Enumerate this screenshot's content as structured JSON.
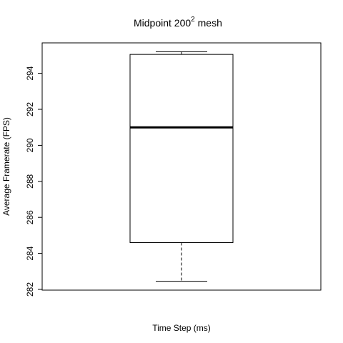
{
  "chart_data": {
    "type": "boxplot",
    "title": "Midpoint  200",
    "title_superscript": "2",
    "title_suffix": "  mesh",
    "xlabel": "Time Step (ms)",
    "ylabel": "Average Framerate (FPS)",
    "ylim": [
      282,
      296
    ],
    "yticks": [
      282,
      284,
      286,
      288,
      290,
      292,
      294
    ],
    "ytick_labels": [
      "282",
      "284",
      "286",
      "288",
      "290",
      "292",
      "294"
    ],
    "grid": false,
    "legend": "none",
    "boxes": [
      {
        "whisker_low": 282.45,
        "q1": 284.6,
        "median": 291.0,
        "q3": 295.05,
        "whisker_high": 295.2
      }
    ],
    "colors": {
      "box_fill": "#ffffff",
      "stroke": "#000000"
    }
  }
}
